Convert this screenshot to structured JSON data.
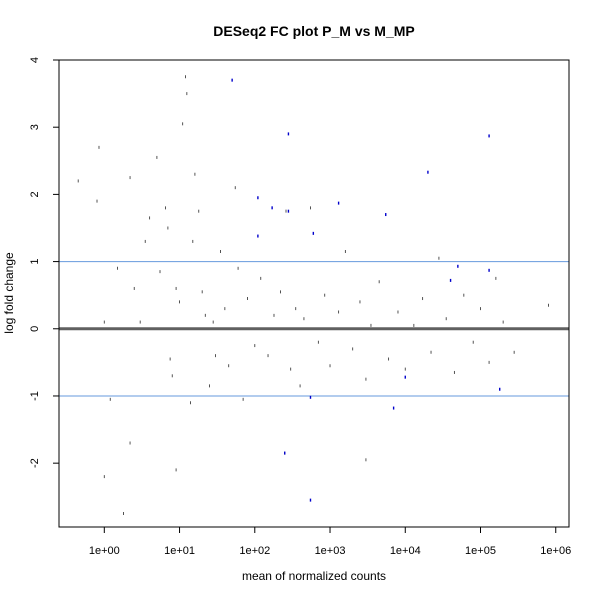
{
  "chart_data": {
    "type": "scatter",
    "title": "DESeq2 FC plot P_M vs M_MP",
    "xlabel": "mean of normalized counts",
    "ylabel": "log fold change",
    "x_scale": "log10",
    "xlim": [
      0.25,
      1500000
    ],
    "ylim": [
      -2.95,
      4.0
    ],
    "x_ticks": [
      1,
      10,
      100,
      1000,
      10000,
      100000,
      1000000
    ],
    "x_tick_labels": [
      "1e+00",
      "1e+01",
      "1e+02",
      "1e+03",
      "1e+04",
      "1e+05",
      "1e+06"
    ],
    "y_ticks": [
      -2,
      -1,
      0,
      1,
      2,
      3,
      4
    ],
    "y_tick_labels": [
      "-2",
      "-1",
      "0",
      "1",
      "2",
      "3",
      "4"
    ],
    "reference_lines": [
      {
        "y": 0,
        "color": "#606060"
      },
      {
        "y": 1,
        "color": "#6699dd"
      },
      {
        "y": -1,
        "color": "#6699dd"
      }
    ],
    "grid": false,
    "colors": {
      "point": "#404040",
      "highlight": "#0000cc",
      "axis": "#000000"
    },
    "series": [
      {
        "values": [
          [
            0.45,
            2.2
          ],
          [
            0.8,
            1.9
          ],
          [
            0.85,
            2.7
          ],
          [
            1.0,
            0.1
          ],
          [
            1.2,
            -1.05
          ],
          [
            1.5,
            0.9
          ],
          [
            1.8,
            -2.75
          ],
          [
            2.2,
            2.25
          ],
          [
            2.5,
            0.6
          ],
          [
            3.0,
            0.1
          ],
          [
            3.5,
            1.3
          ],
          [
            4.0,
            1.65
          ],
          [
            5.0,
            2.55
          ],
          [
            5.5,
            0.85
          ],
          [
            6.5,
            1.8
          ],
          [
            7.0,
            1.5
          ],
          [
            7.5,
            -0.45
          ],
          [
            8.0,
            -0.7
          ],
          [
            9.0,
            0.6
          ],
          [
            10.0,
            0.4
          ],
          [
            11.0,
            3.05
          ],
          [
            12.0,
            3.75
          ],
          [
            12.5,
            3.5
          ],
          [
            14.0,
            -1.1
          ],
          [
            15.0,
            1.3
          ],
          [
            16.0,
            2.3
          ],
          [
            18.0,
            1.75
          ],
          [
            20.0,
            0.55
          ],
          [
            22.0,
            0.2
          ],
          [
            25.0,
            -0.85
          ],
          [
            28.0,
            0.1
          ],
          [
            30.0,
            -0.4
          ],
          [
            35.0,
            1.15
          ],
          [
            40.0,
            0.3
          ],
          [
            45.0,
            -0.55
          ],
          [
            55.0,
            2.1
          ],
          [
            60.0,
            0.9
          ],
          [
            70.0,
            -1.05
          ],
          [
            80.0,
            0.45
          ],
          [
            100.0,
            -0.25
          ],
          [
            120.0,
            0.75
          ],
          [
            150.0,
            -0.4
          ],
          [
            180.0,
            0.2
          ],
          [
            220.0,
            0.55
          ],
          [
            260.0,
            1.75
          ],
          [
            300.0,
            -0.6
          ],
          [
            350.0,
            0.3
          ],
          [
            400.0,
            -0.85
          ],
          [
            450.0,
            0.15
          ],
          [
            550.0,
            1.8
          ],
          [
            700.0,
            -0.2
          ],
          [
            850.0,
            0.5
          ],
          [
            1000.0,
            -0.55
          ],
          [
            1300.0,
            0.25
          ],
          [
            1600.0,
            1.15
          ],
          [
            2000.0,
            -0.3
          ],
          [
            2500.0,
            0.4
          ],
          [
            3000.0,
            -0.75
          ],
          [
            3500.0,
            0.05
          ],
          [
            4500.0,
            0.7
          ],
          [
            6000.0,
            -0.45
          ],
          [
            8000.0,
            0.25
          ],
          [
            10000.0,
            -0.6
          ],
          [
            13000.0,
            0.05
          ],
          [
            17000.0,
            0.45
          ],
          [
            22000.0,
            -0.35
          ],
          [
            28000.0,
            1.05
          ],
          [
            35000.0,
            0.15
          ],
          [
            45000.0,
            -0.65
          ],
          [
            60000.0,
            0.5
          ],
          [
            80000.0,
            -0.2
          ],
          [
            100000.0,
            0.3
          ],
          [
            130000.0,
            -0.5
          ],
          [
            160000.0,
            0.75
          ],
          [
            200000.0,
            0.1
          ],
          [
            280000.0,
            -0.35
          ],
          [
            800000.0,
            0.35
          ],
          [
            3000.0,
            -1.95
          ],
          [
            250.0,
            -1.85
          ],
          [
            9.0,
            -2.1
          ],
          [
            2.2,
            -1.7
          ],
          [
            1.0,
            -2.2
          ]
        ]
      },
      {
        "values": [
          [
            50.0,
            3.7
          ],
          [
            280.0,
            2.9
          ],
          [
            130000.0,
            2.87
          ],
          [
            20000.0,
            2.33
          ],
          [
            110.0,
            1.95
          ],
          [
            1300.0,
            1.87
          ],
          [
            170.0,
            1.8
          ],
          [
            280.0,
            1.75
          ],
          [
            600.0,
            1.42
          ],
          [
            110.0,
            1.38
          ],
          [
            5500.0,
            1.7
          ],
          [
            50000.0,
            0.93
          ],
          [
            130000.0,
            0.87
          ],
          [
            40000.0,
            0.72
          ],
          [
            10000.0,
            -0.72
          ],
          [
            7000.0,
            -1.18
          ],
          [
            550.0,
            -1.02
          ],
          [
            180000.0,
            -0.9
          ],
          [
            250.0,
            -1.85
          ],
          [
            550.0,
            -2.55
          ]
        ]
      }
    ]
  }
}
